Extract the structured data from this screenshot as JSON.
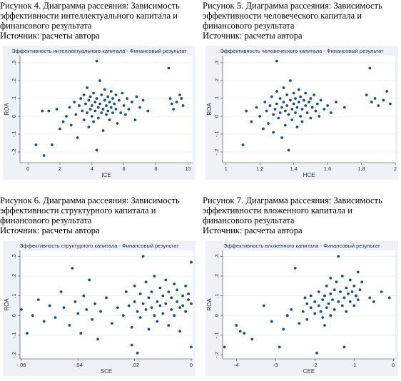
{
  "colors": {
    "background": "#eef2f6",
    "plot": "#ffffff",
    "grid": "#e8edf2",
    "dot": "#1f4e79"
  },
  "figures": [
    {
      "caption": [
        "Рисунок 4. Диаграмма рассеяния: Зависимость",
        "эффективности интеллектуального капитала и",
        "финансового результата",
        "Источник: расчеты автора"
      ]
    },
    {
      "caption": [
        "Рисунок 5. Диаграмма рассеяния: Зависимость",
        "эффективности человеческого капитала и",
        "финансового результата",
        "Источник: расчеты автора"
      ]
    },
    {
      "caption": [
        "Рисунок 6. Диаграмма рассеяния: Зависимость",
        "эффективности структурного капитала и",
        "финансового результата",
        "Источник: расчеты автора"
      ]
    },
    {
      "caption": [
        "Рисунок 7. Диаграмма рассеяния: Зависимость",
        "эффективности вложенного капитала и",
        "финансового результата",
        "Источник: расчеты автора"
      ]
    }
  ],
  "chart_data": [
    {
      "type": "scatter",
      "title": "Эффективность интеллектуального капитала - Финансовый результат",
      "xlabel": "ICE",
      "ylabel": "ROA",
      "xlim": [
        -0.5,
        10.3
      ],
      "ylim": [
        -0.26,
        0.34
      ],
      "xticks": [
        0,
        2,
        4,
        6,
        8,
        10
      ],
      "yticks": [
        -0.2,
        -0.1,
        0,
        0.1,
        0.2,
        0.3
      ],
      "xtick_labels": [
        "0",
        "2",
        "4",
        "6",
        "8",
        "10"
      ],
      "ytick_labels": [
        "-.2",
        "-.1",
        "0",
        ".1",
        ".2",
        ".3"
      ],
      "grid": true,
      "points": [
        [
          0.5,
          -0.16
        ],
        [
          0.9,
          0.03
        ],
        [
          1.0,
          -0.22
        ],
        [
          1.3,
          0.03
        ],
        [
          1.5,
          -0.16
        ],
        [
          1.8,
          0.04
        ],
        [
          2.0,
          -0.07
        ],
        [
          2.2,
          -0.03
        ],
        [
          2.4,
          0.0
        ],
        [
          2.6,
          0.05
        ],
        [
          2.7,
          -0.05
        ],
        [
          2.9,
          0.08
        ],
        [
          3.0,
          0.01
        ],
        [
          3.1,
          -0.12
        ],
        [
          3.2,
          0.06
        ],
        [
          3.3,
          0.1
        ],
        [
          3.4,
          0.03
        ],
        [
          3.5,
          0.12
        ],
        [
          3.5,
          -0.02
        ],
        [
          3.6,
          0.07
        ],
        [
          3.7,
          0.16
        ],
        [
          3.7,
          0.02
        ],
        [
          3.8,
          0.09
        ],
        [
          3.8,
          -0.06
        ],
        [
          3.9,
          0.04
        ],
        [
          3.9,
          0.11
        ],
        [
          4.0,
          0.0
        ],
        [
          4.0,
          0.06
        ],
        [
          4.1,
          0.13
        ],
        [
          4.1,
          -0.03
        ],
        [
          4.2,
          0.08
        ],
        [
          4.2,
          0.03
        ],
        [
          4.3,
          -0.19
        ],
        [
          4.3,
          0.31
        ],
        [
          4.3,
          0.1
        ],
        [
          4.4,
          0.05
        ],
        [
          4.4,
          -0.01
        ],
        [
          4.5,
          0.2
        ],
        [
          4.5,
          0.07
        ],
        [
          4.6,
          0.02
        ],
        [
          4.6,
          0.12
        ],
        [
          4.7,
          0.04
        ],
        [
          4.7,
          -0.08
        ],
        [
          4.8,
          0.09
        ],
        [
          4.8,
          0.15
        ],
        [
          4.9,
          0.01
        ],
        [
          4.9,
          0.06
        ],
        [
          5.0,
          0.03
        ],
        [
          5.0,
          0.11
        ],
        [
          5.1,
          0.08
        ],
        [
          5.1,
          -0.02
        ],
        [
          5.2,
          0.14
        ],
        [
          5.2,
          0.05
        ],
        [
          5.3,
          0.1
        ],
        [
          5.3,
          0.02
        ],
        [
          5.4,
          0.07
        ],
        [
          5.5,
          0.12
        ],
        [
          5.5,
          0.04
        ],
        [
          5.6,
          -0.04
        ],
        [
          5.7,
          0.09
        ],
        [
          5.8,
          0.02
        ],
        [
          5.9,
          0.13
        ],
        [
          6.0,
          0.06
        ],
        [
          6.1,
          0.01
        ],
        [
          6.2,
          0.1
        ],
        [
          6.3,
          0.04
        ],
        [
          6.5,
          0.08
        ],
        [
          6.7,
          -0.02
        ],
        [
          6.8,
          0.11
        ],
        [
          7.0,
          0.05
        ],
        [
          7.2,
          0.09
        ],
        [
          7.5,
          0.03
        ],
        [
          8.8,
          0.27
        ],
        [
          8.9,
          0.1
        ],
        [
          9.0,
          0.07
        ],
        [
          9.1,
          0.04
        ],
        [
          9.3,
          0.08
        ],
        [
          9.5,
          0.12
        ],
        [
          9.6,
          0.1
        ],
        [
          9.7,
          0.06
        ]
      ]
    },
    {
      "type": "scatter",
      "title": "Эффективность человеческого капитала - Финансовый результат",
      "xlabel": "HCE",
      "ylabel": "ROA",
      "xlim": [
        0.98,
        2.0
      ],
      "ylim": [
        -0.26,
        0.34
      ],
      "xticks": [
        1,
        1.2,
        1.4,
        1.6,
        1.8,
        2
      ],
      "yticks": [
        -0.2,
        -0.1,
        0,
        0.1,
        0.2,
        0.3
      ],
      "xtick_labels": [
        "1",
        "1.2",
        "1.4",
        "1.6",
        "1.8",
        "2"
      ],
      "ytick_labels": [
        "-.2",
        "-.1",
        "0",
        ".1",
        ".2",
        ".3"
      ],
      "grid": true,
      "points": [
        [
          1.1,
          -0.16
        ],
        [
          1.12,
          0.03
        ],
        [
          1.15,
          -0.03
        ],
        [
          1.18,
          0.05
        ],
        [
          1.2,
          0.0
        ],
        [
          1.22,
          -0.07
        ],
        [
          1.23,
          0.08
        ],
        [
          1.24,
          0.03
        ],
        [
          1.25,
          -0.04
        ],
        [
          1.26,
          0.06
        ],
        [
          1.27,
          0.11
        ],
        [
          1.28,
          0.01
        ],
        [
          1.28,
          -0.09
        ],
        [
          1.29,
          0.04
        ],
        [
          1.3,
          0.14
        ],
        [
          1.3,
          0.07
        ],
        [
          1.31,
          -0.01
        ],
        [
          1.32,
          0.1
        ],
        [
          1.32,
          0.02
        ],
        [
          1.33,
          0.05
        ],
        [
          1.33,
          -0.12
        ],
        [
          1.34,
          0.08
        ],
        [
          1.34,
          0.16
        ],
        [
          1.35,
          0.03
        ],
        [
          1.35,
          -0.05
        ],
        [
          1.36,
          0.12
        ],
        [
          1.36,
          0.06
        ],
        [
          1.37,
          0.01
        ],
        [
          1.37,
          -0.19
        ],
        [
          1.38,
          0.09
        ],
        [
          1.38,
          0.2
        ],
        [
          1.39,
          0.04
        ],
        [
          1.39,
          -0.02
        ],
        [
          1.4,
          0.13
        ],
        [
          1.4,
          0.07
        ],
        [
          1.41,
          0.02
        ],
        [
          1.41,
          0.1
        ],
        [
          1.42,
          -0.06
        ],
        [
          1.42,
          0.05
        ],
        [
          1.43,
          0.15
        ],
        [
          1.43,
          0.08
        ],
        [
          1.44,
          0.0
        ],
        [
          1.44,
          0.11
        ],
        [
          1.45,
          0.04
        ],
        [
          1.45,
          -0.03
        ],
        [
          1.46,
          0.09
        ],
        [
          1.47,
          0.06
        ],
        [
          1.47,
          0.13
        ],
        [
          1.48,
          0.02
        ],
        [
          1.49,
          0.08
        ],
        [
          1.5,
          -0.01
        ],
        [
          1.5,
          0.1
        ],
        [
          1.51,
          0.05
        ],
        [
          1.52,
          0.12
        ],
        [
          1.53,
          0.03
        ],
        [
          1.54,
          0.07
        ],
        [
          1.55,
          0.0
        ],
        [
          1.56,
          0.09
        ],
        [
          1.58,
          0.04
        ],
        [
          1.6,
          0.06
        ],
        [
          1.62,
          0.02
        ],
        [
          1.65,
          0.08
        ],
        [
          1.7,
          0.05
        ],
        [
          1.3,
          0.31
        ],
        [
          1.83,
          0.12
        ],
        [
          1.85,
          0.27
        ],
        [
          1.86,
          0.08
        ],
        [
          1.88,
          0.1
        ],
        [
          1.9,
          0.06
        ],
        [
          1.93,
          0.09
        ],
        [
          1.95,
          0.14
        ],
        [
          1.97,
          0.07
        ]
      ]
    },
    {
      "type": "scatter",
      "title": "Эффективность структурного капитала - Финансовый результат",
      "xlabel": "SCE",
      "ylabel": "ROA",
      "xlim": [
        -0.0605,
        0.0005
      ],
      "ylim": [
        -0.22,
        0.33
      ],
      "xticks": [
        -0.06,
        -0.04,
        -0.02,
        0
      ],
      "yticks": [
        -0.2,
        -0.1,
        0,
        0.1,
        0.2,
        0.3
      ],
      "xtick_labels": [
        "-.06",
        "-.04",
        "-.02",
        "0"
      ],
      "ytick_labels": [
        "-.2",
        "-.1",
        "0",
        ".1",
        ".2",
        ".3"
      ],
      "grid": true,
      "points": [
        [
          -0.06,
          0.03
        ],
        [
          -0.058,
          -0.09
        ],
        [
          -0.056,
          0.0
        ],
        [
          -0.054,
          0.08
        ],
        [
          -0.052,
          -0.03
        ],
        [
          -0.05,
          0.05
        ],
        [
          -0.048,
          -0.01
        ],
        [
          -0.046,
          0.12
        ],
        [
          -0.045,
          0.04
        ],
        [
          -0.043,
          -0.05
        ],
        [
          -0.042,
          0.24
        ],
        [
          -0.041,
          0.07
        ],
        [
          -0.04,
          0.01
        ],
        [
          -0.039,
          -0.09
        ],
        [
          -0.038,
          0.1
        ],
        [
          -0.037,
          0.03
        ],
        [
          -0.036,
          0.18
        ],
        [
          -0.035,
          -0.02
        ],
        [
          -0.034,
          0.06
        ],
        [
          -0.033,
          -0.12
        ],
        [
          -0.032,
          0.02
        ],
        [
          -0.03,
          0.09
        ],
        [
          -0.028,
          -0.04
        ],
        [
          -0.026,
          0.04
        ],
        [
          -0.024,
          0.0
        ],
        [
          -0.023,
          0.12
        ],
        [
          -0.022,
          0.05
        ],
        [
          -0.021,
          -0.06
        ],
        [
          -0.02,
          0.15
        ],
        [
          -0.02,
          0.07
        ],
        [
          -0.019,
          0.02
        ],
        [
          -0.018,
          0.11
        ],
        [
          -0.018,
          -0.01
        ],
        [
          -0.017,
          0.3
        ],
        [
          -0.017,
          0.06
        ],
        [
          -0.016,
          0.17
        ],
        [
          -0.016,
          0.03
        ],
        [
          -0.015,
          -0.07
        ],
        [
          -0.015,
          0.09
        ],
        [
          -0.014,
          0.12
        ],
        [
          -0.014,
          0.04
        ],
        [
          -0.013,
          0.0
        ],
        [
          -0.013,
          0.2
        ],
        [
          -0.012,
          0.07
        ],
        [
          -0.012,
          -0.03
        ],
        [
          -0.011,
          0.14
        ],
        [
          -0.011,
          0.05
        ],
        [
          -0.01,
          0.1
        ],
        [
          -0.01,
          0.01
        ],
        [
          -0.009,
          0.18
        ],
        [
          -0.009,
          0.06
        ],
        [
          -0.008,
          -0.05
        ],
        [
          -0.008,
          0.12
        ],
        [
          -0.007,
          0.03
        ],
        [
          -0.007,
          0.09
        ],
        [
          -0.006,
          0.16
        ],
        [
          -0.006,
          0.0
        ],
        [
          -0.005,
          0.07
        ],
        [
          -0.005,
          0.13
        ],
        [
          -0.004,
          0.04
        ],
        [
          -0.004,
          -0.08
        ],
        [
          -0.003,
          0.1
        ],
        [
          -0.003,
          0.05
        ],
        [
          -0.002,
          0.15
        ],
        [
          -0.002,
          0.02
        ],
        [
          -0.001,
          0.08
        ],
        [
          -0.001,
          0.11
        ],
        [
          0.0,
          0.06
        ],
        [
          0.0,
          0.27
        ],
        [
          0.0,
          -0.16
        ],
        [
          -0.019,
          -0.19
        ],
        [
          -0.021,
          -0.15
        ]
      ]
    },
    {
      "type": "scatter",
      "title": "Эффективность вложенного капитала - Финансовый результат",
      "xlabel": "CEE",
      "ylabel": "ROA",
      "xlim": [
        -4.35,
        0.05
      ],
      "ylim": [
        -0.22,
        0.33
      ],
      "xticks": [
        -4,
        -3,
        -2,
        -1,
        0
      ],
      "yticks": [
        -0.2,
        -0.1,
        0,
        0.1,
        0.2,
        0.3
      ],
      "xtick_labels": [
        "-4",
        "-3",
        "-2",
        "-1",
        "0"
      ],
      "ytick_labels": [
        "-.2",
        "-.1",
        "0",
        ".1",
        ".2",
        ".3"
      ],
      "grid": true,
      "points": [
        [
          -4.3,
          -0.16
        ],
        [
          -4.0,
          -0.05
        ],
        [
          -3.9,
          -0.08
        ],
        [
          -3.8,
          -0.09
        ],
        [
          -3.6,
          -0.12
        ],
        [
          -3.3,
          0.05
        ],
        [
          -3.1,
          -0.03
        ],
        [
          -2.9,
          -0.16
        ],
        [
          -2.8,
          -0.07
        ],
        [
          -2.7,
          0.0
        ],
        [
          -2.6,
          0.03
        ],
        [
          -2.5,
          0.24
        ],
        [
          -2.4,
          -0.04
        ],
        [
          -2.3,
          0.02
        ],
        [
          -2.2,
          0.06
        ],
        [
          -2.2,
          -0.02
        ],
        [
          -2.1,
          0.04
        ],
        [
          -2.1,
          0.1
        ],
        [
          -2.0,
          0.01
        ],
        [
          -2.0,
          0.07
        ],
        [
          -1.95,
          -0.19
        ],
        [
          -1.9,
          0.05
        ],
        [
          -1.9,
          0.12
        ],
        [
          -1.85,
          0.02
        ],
        [
          -1.8,
          0.08
        ],
        [
          -1.8,
          -0.01
        ],
        [
          -1.75,
          0.1
        ],
        [
          -1.7,
          0.04
        ],
        [
          -1.7,
          0.15
        ],
        [
          -1.65,
          0.06
        ],
        [
          -1.6,
          0.0
        ],
        [
          -1.6,
          0.11
        ],
        [
          -1.55,
          0.08
        ],
        [
          -1.5,
          0.13
        ],
        [
          -1.5,
          0.03
        ],
        [
          -1.45,
          0.17
        ],
        [
          -1.4,
          0.07
        ],
        [
          -1.4,
          0.3
        ],
        [
          -1.35,
          0.12
        ],
        [
          -1.3,
          0.05
        ],
        [
          -1.3,
          0.2
        ],
        [
          -1.25,
          0.09
        ],
        [
          -1.2,
          0.14
        ],
        [
          -1.2,
          0.02
        ],
        [
          -1.15,
          0.11
        ],
        [
          -1.1,
          0.18
        ],
        [
          -1.1,
          0.07
        ],
        [
          -1.05,
          0.12
        ],
        [
          -1.0,
          0.15
        ],
        [
          -1.0,
          0.05
        ],
        [
          -0.95,
          0.1
        ],
        [
          -0.9,
          0.22
        ],
        [
          -0.9,
          0.08
        ],
        [
          -0.85,
          0.13
        ],
        [
          -0.8,
          0.17
        ],
        [
          -1.25,
          -0.16
        ],
        [
          -0.6,
          0.09
        ],
        [
          -0.5,
          0.07
        ],
        [
          -0.3,
          0.12
        ],
        [
          -0.1,
          0.09
        ],
        [
          -2.25,
          0.09
        ],
        [
          -1.75,
          -0.05
        ],
        [
          -1.6,
          0.19
        ]
      ]
    }
  ]
}
